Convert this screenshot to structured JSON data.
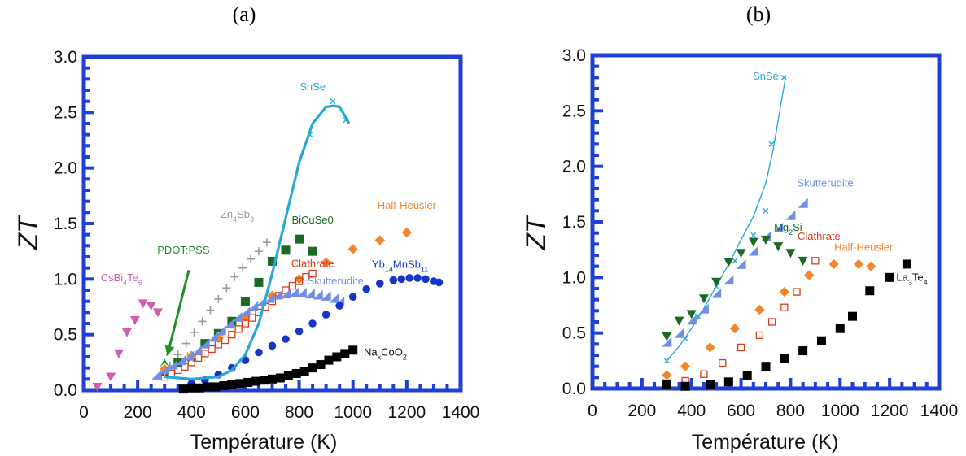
{
  "chart_data": [
    {
      "type": "scatter",
      "panel_label": "(a)",
      "xlabel": "Température (K)",
      "ylabel": "ZT",
      "xlim": [
        0,
        1400
      ],
      "ylim": [
        0,
        3.0
      ],
      "xticks": [
        "0",
        "200",
        "400",
        "600",
        "800",
        "1000",
        "1200",
        "1400"
      ],
      "yticks": [
        "0.0",
        "0.5",
        "1.0",
        "1.5",
        "2.0",
        "2.5",
        "3.0"
      ],
      "frame_color": "#1f3fd6",
      "series": [
        {
          "name": "CsBi4Te6",
          "label_parts": [
            [
              "CsBi",
              ""
            ],
            [
              "4",
              "sub"
            ],
            [
              "Te",
              ""
            ],
            [
              "6",
              "sub"
            ]
          ],
          "label_at": [
            140,
            0.98
          ],
          "color": "#d05cb0",
          "marker": "tri-down",
          "x": [
            50,
            100,
            130,
            160,
            190,
            220,
            250,
            275
          ],
          "y": [
            0.03,
            0.12,
            0.33,
            0.52,
            0.63,
            0.78,
            0.76,
            0.7
          ]
        },
        {
          "name": "PDOT:PSS",
          "label_parts": [
            [
              "PDOT:PSS",
              ""
            ]
          ],
          "label_at": [
            370,
            1.23
          ],
          "color": "#1f8f2a",
          "marker": "tri-up",
          "x": [
            300
          ],
          "y": [
            0.24
          ],
          "arrow": {
            "from": [
              390,
              1.08
            ],
            "to": [
              310,
              0.31
            ]
          }
        },
        {
          "name": "Zn4Sb3",
          "label_parts": [
            [
              "Zn",
              ""
            ],
            [
              "4",
              "sub"
            ],
            [
              "Sb",
              ""
            ],
            [
              "3",
              "sub"
            ]
          ],
          "label_at": [
            570,
            1.55
          ],
          "color": "#9a9a9a",
          "marker": "plus",
          "x": [
            320,
            350,
            380,
            410,
            440,
            470,
            500,
            530,
            560,
            590,
            620,
            650,
            680
          ],
          "y": [
            0.22,
            0.32,
            0.42,
            0.52,
            0.62,
            0.72,
            0.82,
            0.92,
            1.02,
            1.1,
            1.18,
            1.25,
            1.33
          ]
        },
        {
          "name": "BiCuSe0",
          "label_parts": [
            [
              "BiCuSe0",
              ""
            ]
          ],
          "label_at": [
            850,
            1.5
          ],
          "color": "#1a6a24",
          "marker": "square",
          "x": [
            300,
            350,
            400,
            450,
            500,
            550,
            600,
            650,
            700,
            750,
            800,
            850
          ],
          "y": [
            0.17,
            0.25,
            0.3,
            0.42,
            0.51,
            0.62,
            0.8,
            0.97,
            1.16,
            1.26,
            1.36,
            1.25
          ]
        },
        {
          "name": "Half-Heusler",
          "label_parts": [
            [
              "Half-Heusler",
              ""
            ]
          ],
          "label_at": [
            1200,
            1.63
          ],
          "color": "#f2862c",
          "marker": "diamond",
          "x": [
            300,
            400,
            500,
            600,
            700,
            800,
            900,
            1000,
            1100,
            1200
          ],
          "y": [
            0.19,
            0.31,
            0.47,
            0.66,
            0.85,
            1.0,
            1.15,
            1.27,
            1.35,
            1.42
          ]
        },
        {
          "name": "Clathrate",
          "label_parts": [
            [
              "Clathrate",
              ""
            ]
          ],
          "label_at": [
            850,
            1.11
          ],
          "color": "#d83a1a",
          "marker": "open-square",
          "x": [
            300,
            325,
            350,
            375,
            400,
            425,
            450,
            475,
            500,
            525,
            550,
            575,
            600,
            625,
            650,
            675,
            700,
            725,
            750,
            775,
            800,
            825,
            850
          ],
          "y": [
            0.12,
            0.15,
            0.18,
            0.21,
            0.25,
            0.29,
            0.33,
            0.37,
            0.41,
            0.45,
            0.5,
            0.55,
            0.6,
            0.65,
            0.7,
            0.75,
            0.8,
            0.85,
            0.9,
            0.94,
            0.98,
            1.02,
            1.05
          ]
        },
        {
          "name": "Skutterudite",
          "label_parts": [
            [
              "Skutterudite",
              ""
            ]
          ],
          "label_at": [
            935,
            0.95
          ],
          "color": "#6f8ee8",
          "marker": "tri-right",
          "x": [
            270,
            300,
            330,
            360,
            390,
            420,
            450,
            480,
            510,
            540,
            570,
            600,
            630,
            660,
            690,
            720,
            750,
            780,
            810,
            840,
            870,
            900,
            930,
            950
          ],
          "y": [
            0.14,
            0.19,
            0.23,
            0.27,
            0.31,
            0.36,
            0.42,
            0.48,
            0.54,
            0.6,
            0.66,
            0.71,
            0.76,
            0.8,
            0.83,
            0.86,
            0.87,
            0.88,
            0.88,
            0.87,
            0.86,
            0.85,
            0.83,
            0.8
          ]
        },
        {
          "name": "Yb14MnSb11",
          "label_parts": [
            [
              "Yb",
              ""
            ],
            [
              "14",
              "sub"
            ],
            [
              "MnSb",
              ""
            ],
            [
              "11",
              "sub"
            ]
          ],
          "label_at": [
            1175,
            1.1
          ],
          "color": "#1534c8",
          "marker": "circle",
          "x": [
            400,
            450,
            500,
            550,
            600,
            650,
            700,
            750,
            800,
            850,
            900,
            950,
            1000,
            1050,
            1100,
            1150,
            1180,
            1210,
            1240,
            1270,
            1300,
            1320
          ],
          "y": [
            0.06,
            0.09,
            0.14,
            0.2,
            0.27,
            0.34,
            0.4,
            0.46,
            0.53,
            0.6,
            0.68,
            0.76,
            0.84,
            0.91,
            0.96,
            0.99,
            1.0,
            1.01,
            1.01,
            1.0,
            0.98,
            0.97
          ]
        },
        {
          "name": "NaxCoO2",
          "label_parts": [
            [
              "Na",
              ""
            ],
            [
              "x",
              "sub"
            ],
            [
              "CoO",
              ""
            ],
            [
              "2",
              "sub"
            ]
          ],
          "label_at": [
            1120,
            0.31
          ],
          "color": "#000000",
          "marker": "square",
          "x": [
            370,
            400,
            430,
            460,
            490,
            520,
            550,
            580,
            610,
            640,
            670,
            700,
            730,
            760,
            790,
            820,
            850,
            880,
            910,
            940,
            970,
            1000
          ],
          "y": [
            0.01,
            0.02,
            0.02,
            0.03,
            0.03,
            0.04,
            0.05,
            0.06,
            0.07,
            0.08,
            0.09,
            0.1,
            0.11,
            0.13,
            0.15,
            0.17,
            0.2,
            0.23,
            0.27,
            0.3,
            0.33,
            0.36
          ]
        },
        {
          "name": "SnSe",
          "label_parts": [
            [
              "SnSe",
              ""
            ]
          ],
          "label_at": [
            850,
            2.7
          ],
          "color": "#28a8d8",
          "marker": "x",
          "x": [
            840,
            925,
            973
          ],
          "y": [
            2.3,
            2.6,
            2.43
          ],
          "curve": {
            "x": [
              300,
              400,
              500,
              550,
              600,
              650,
              700,
              750,
              800,
              850,
              900,
              930,
              950,
              970,
              985
            ],
            "y": [
              0.12,
              0.1,
              0.12,
              0.18,
              0.32,
              0.6,
              1.05,
              1.55,
              2.05,
              2.4,
              2.55,
              2.56,
              2.55,
              2.47,
              2.4
            ]
          }
        }
      ]
    },
    {
      "type": "scatter",
      "panel_label": "(b)",
      "xlabel": "Température (K)",
      "ylabel": "ZT",
      "xlim": [
        0,
        1400
      ],
      "ylim": [
        0,
        3.0
      ],
      "xticks": [
        "0",
        "200",
        "400",
        "600",
        "800",
        "1000",
        "1200",
        "1400"
      ],
      "yticks": [
        "0.0",
        "0.5",
        "1.0",
        "1.5",
        "2.0",
        "2.5",
        "3.0"
      ],
      "frame_color": "#1f3fd6",
      "series": [
        {
          "name": "SnSe",
          "label_parts": [
            [
              "SnSe",
              ""
            ]
          ],
          "label_at": [
            700,
            2.78
          ],
          "color": "#28a8d8",
          "marker": "x",
          "x": [
            300,
            375,
            425,
            500,
            575,
            650,
            700,
            723,
            773
          ],
          "y": [
            0.25,
            0.45,
            0.65,
            0.92,
            1.15,
            1.38,
            1.6,
            2.2,
            2.8
          ],
          "curve": {
            "x": [
              300,
              350,
              400,
              450,
              500,
              550,
              600,
              650,
              700,
              730,
              760,
              780
            ],
            "y": [
              0.25,
              0.38,
              0.54,
              0.72,
              0.92,
              1.12,
              1.34,
              1.55,
              1.85,
              2.15,
              2.55,
              2.8
            ]
          }
        },
        {
          "name": "Skutterudite",
          "label_parts": [
            [
              "Skutterudite",
              ""
            ]
          ],
          "label_at": [
            940,
            1.82
          ],
          "color": "#6f8ee8",
          "marker": "tri-right",
          "x": [
            300,
            350,
            400,
            450,
            500,
            550,
            600,
            650,
            700,
            750,
            800,
            850
          ],
          "y": [
            0.42,
            0.5,
            0.62,
            0.72,
            0.86,
            0.98,
            1.12,
            1.24,
            1.37,
            1.45,
            1.56,
            1.67
          ]
        },
        {
          "name": "Mg2Si",
          "label_parts": [
            [
              "Mg",
              ""
            ],
            [
              "2",
              "sub"
            ],
            [
              "Si",
              ""
            ]
          ],
          "label_at": [
            790,
            1.42
          ],
          "color": "#1a6a24",
          "marker": "tri-down",
          "x": [
            300,
            350,
            400,
            450,
            500,
            550,
            600,
            650,
            700,
            750,
            800,
            850
          ],
          "y": [
            0.47,
            0.61,
            0.67,
            0.81,
            0.96,
            1.14,
            1.22,
            1.32,
            1.34,
            1.28,
            1.22,
            1.15
          ]
        },
        {
          "name": "Clathrate",
          "label_parts": [
            [
              "Clathrate",
              ""
            ]
          ],
          "label_at": [
            915,
            1.34
          ],
          "color": "#d83a1a",
          "marker": "open-square",
          "x": [
            300,
            375,
            450,
            525,
            600,
            675,
            725,
            775,
            825,
            900
          ],
          "y": [
            0.05,
            0.07,
            0.13,
            0.23,
            0.37,
            0.48,
            0.6,
            0.73,
            0.87,
            1.15
          ]
        },
        {
          "name": "Half-Heusler",
          "label_parts": [
            [
              "Half-Heusler",
              ""
            ]
          ],
          "label_at": [
            1095,
            1.24
          ],
          "color": "#f2862c",
          "marker": "diamond",
          "x": [
            300,
            375,
            475,
            575,
            675,
            775,
            875,
            975,
            1075,
            1125
          ],
          "y": [
            0.12,
            0.2,
            0.37,
            0.54,
            0.71,
            0.87,
            1.02,
            1.12,
            1.12,
            1.1
          ]
        },
        {
          "name": "La3Te4",
          "label_parts": [
            [
              "La",
              ""
            ],
            [
              "3",
              "sub"
            ],
            [
              "Te",
              ""
            ],
            [
              "4",
              "sub"
            ]
          ],
          "label_at": [
            1290,
            0.97
          ],
          "color": "#000000",
          "marker": "square",
          "x": [
            300,
            375,
            475,
            550,
            625,
            700,
            775,
            850,
            925,
            1000,
            1050,
            1120,
            1200,
            1270
          ],
          "y": [
            0.04,
            0.02,
            0.04,
            0.06,
            0.12,
            0.2,
            0.27,
            0.34,
            0.43,
            0.54,
            0.65,
            0.88,
            1.0,
            1.12
          ]
        }
      ]
    }
  ]
}
